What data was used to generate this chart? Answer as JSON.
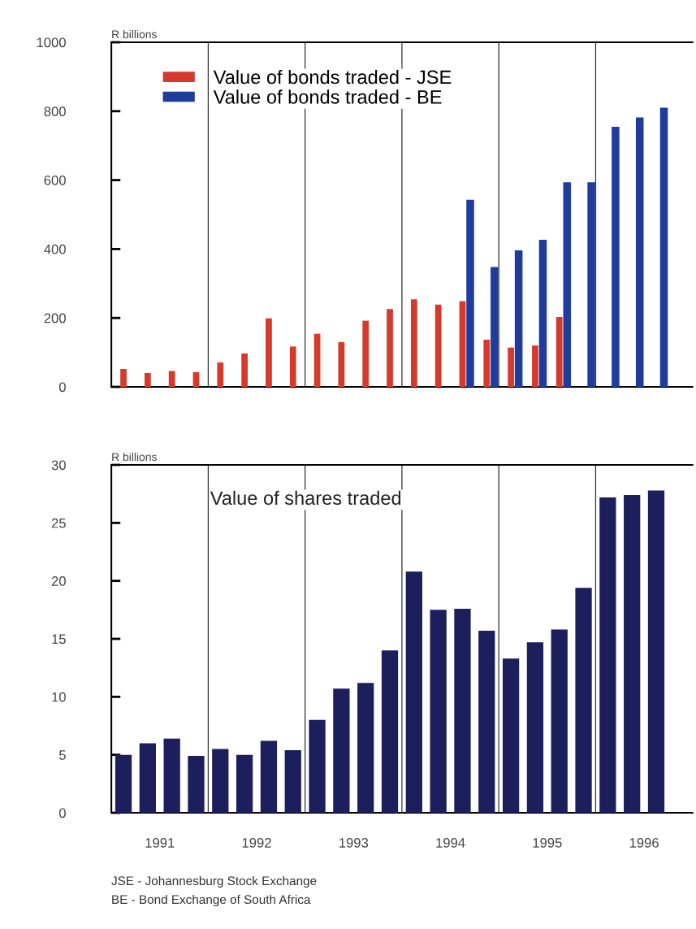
{
  "chart_data": [
    {
      "type": "bar",
      "ylabel": "R billions",
      "xlim": [
        1991,
        1997
      ],
      "ylim": [
        0,
        1000
      ],
      "yticks": [
        0,
        200,
        400,
        600,
        800,
        1000
      ],
      "tick_labels": "y",
      "legend": "top left",
      "ref_lines": [
        {
          "axis": "x",
          "value": 1992
        },
        {
          "axis": "x",
          "value": 1993
        },
        {
          "axis": "x",
          "value": 1994
        },
        {
          "axis": "x",
          "value": 1995
        },
        {
          "axis": "x",
          "value": 1996
        }
      ],
      "series": [
        {
          "name": "Value of bonds traded - JSE",
          "color": "#d63a2c",
          "x": [
            1991.125,
            1991.375,
            1991.625,
            1991.875,
            1992.125,
            1992.375,
            1992.625,
            1992.875,
            1993.125,
            1993.375,
            1993.625,
            1993.875,
            1994.125,
            1994.375,
            1994.625,
            1994.875,
            1995.125,
            1995.375,
            1995.625
          ],
          "values": [
            52,
            40,
            46,
            43,
            71,
            97,
            199,
            117,
            154,
            130,
            192,
            226,
            254,
            239,
            249,
            137,
            114,
            120,
            203
          ]
        },
        {
          "name": "Value of bonds traded - BE",
          "color": "#1f3c9c",
          "x": [
            1994.705,
            1994.955,
            1995.205,
            1995.455,
            1995.705,
            1995.955,
            1996.205,
            1996.455,
            1996.705
          ],
          "values": [
            543,
            348,
            396,
            427,
            594,
            594,
            755,
            782,
            810
          ]
        }
      ]
    },
    {
      "type": "bar",
      "title": "Value of shares traded",
      "ylabel": "R billions",
      "xlim": [
        1991,
        1997
      ],
      "ylim": [
        0,
        30
      ],
      "yticks": [
        0,
        5,
        10,
        15,
        20,
        25,
        30
      ],
      "xticks": [
        {
          "value": 1991.5,
          "label": "1991"
        },
        {
          "value": 1992.5,
          "label": "1992"
        },
        {
          "value": 1993.5,
          "label": "1993"
        },
        {
          "value": 1994.5,
          "label": "1994"
        },
        {
          "value": 1995.5,
          "label": "1995"
        },
        {
          "value": 1996.5,
          "label": "1996"
        }
      ],
      "ref_lines": [
        {
          "axis": "x",
          "value": 1992
        },
        {
          "axis": "x",
          "value": 1993
        },
        {
          "axis": "x",
          "value": 1994
        },
        {
          "axis": "x",
          "value": 1995
        },
        {
          "axis": "x",
          "value": 1996
        }
      ],
      "annotations": [
        "JSE - Johannesburg Stock Exchange",
        "BE - Bond Exchange of South Africa"
      ],
      "series": [
        {
          "color": "#1c1f5c",
          "x": [
            1991.125,
            1991.375,
            1991.625,
            1991.875,
            1992.125,
            1992.375,
            1992.625,
            1992.875,
            1993.125,
            1993.375,
            1993.625,
            1993.875,
            1994.125,
            1994.375,
            1994.625,
            1994.875,
            1995.125,
            1995.375,
            1995.625,
            1995.875,
            1996.125,
            1996.375,
            1996.625
          ],
          "values": [
            5.0,
            6.0,
            6.4,
            4.9,
            5.5,
            5.0,
            6.2,
            5.4,
            8.0,
            10.7,
            11.2,
            14.0,
            20.8,
            17.5,
            17.6,
            15.7,
            13.3,
            14.7,
            15.8,
            19.4,
            27.2,
            27.4,
            27.8
          ]
        }
      ]
    }
  ]
}
